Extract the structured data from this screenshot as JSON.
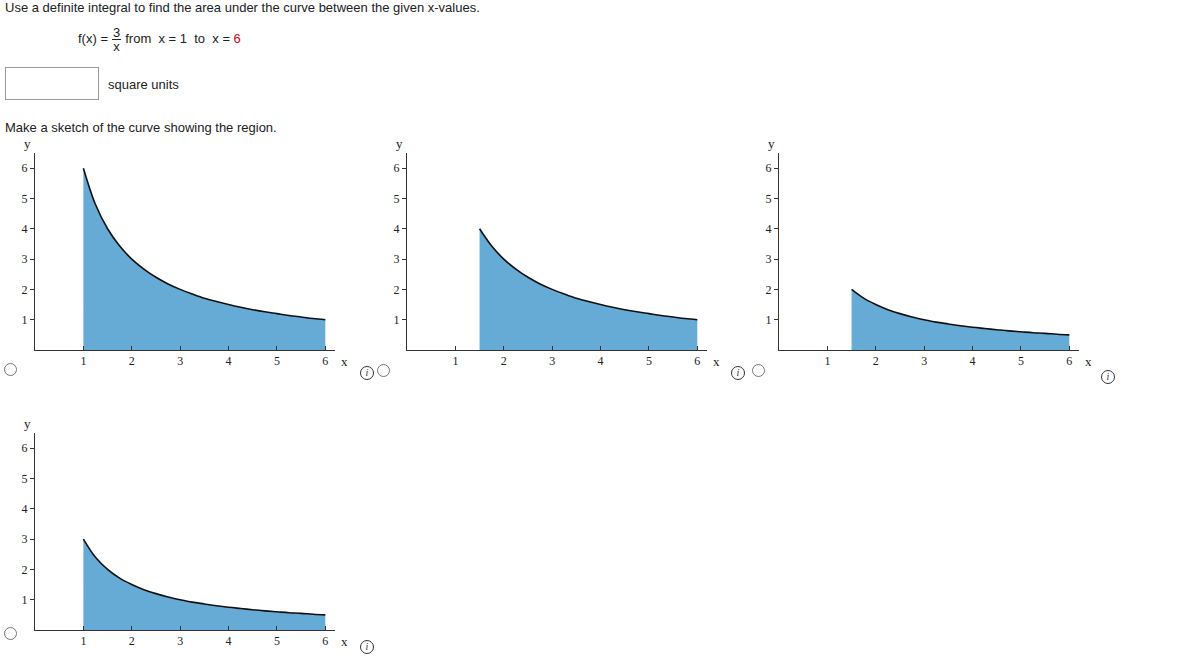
{
  "instruction": "Use a definite integral to find the area under the curve between the given x-values.",
  "problem": {
    "lhs": "f(x) =",
    "numerator": "3",
    "denominator": "x",
    "range_text": "from  x = 1  to  x =",
    "range_end": "6"
  },
  "answer_unit": "square units",
  "sketch_prompt": "Make a sketch of the curve showing the region.",
  "chart_data": [
    {
      "type": "area",
      "x_label": "x",
      "y_label": "y",
      "color": "#66aad6",
      "x": [
        1,
        1.25,
        1.5,
        1.75,
        2,
        2.25,
        2.5,
        2.75,
        3,
        3.25,
        3.5,
        3.75,
        4,
        4.25,
        4.5,
        4.75,
        5,
        5.25,
        5.5,
        5.75,
        6
      ],
      "values": [
        6,
        4.8,
        4,
        3.43,
        3,
        2.67,
        2.4,
        2.18,
        2,
        1.85,
        1.71,
        1.6,
        1.5,
        1.41,
        1.33,
        1.26,
        1.2,
        1.14,
        1.09,
        1.04,
        1
      ],
      "xlim": [
        0,
        6.2
      ],
      "ylim": [
        0,
        6.5
      ],
      "xticks": [
        1,
        2,
        3,
        4,
        5,
        6
      ],
      "yticks": [
        1,
        2,
        3,
        4,
        5,
        6
      ]
    },
    {
      "type": "area",
      "x_label": "x",
      "y_label": "y",
      "color": "#66aad6",
      "x": [
        1.5,
        1.75,
        2,
        2.25,
        2.5,
        2.75,
        3,
        3.25,
        3.5,
        3.75,
        4,
        4.25,
        4.5,
        4.75,
        5,
        5.25,
        5.5,
        5.75,
        6
      ],
      "values": [
        4,
        3.43,
        3,
        2.67,
        2.4,
        2.18,
        2,
        1.85,
        1.71,
        1.6,
        1.5,
        1.41,
        1.33,
        1.26,
        1.2,
        1.14,
        1.09,
        1.04,
        1
      ],
      "xlim": [
        0,
        6.2
      ],
      "ylim": [
        0,
        6.5
      ],
      "xticks": [
        1,
        2,
        3,
        4,
        5,
        6
      ],
      "yticks": [
        1,
        2,
        3,
        4,
        5,
        6
      ]
    },
    {
      "type": "area",
      "x_label": "x",
      "y_label": "y",
      "color": "#66aad6",
      "x": [
        1.5,
        1.75,
        2,
        2.25,
        2.5,
        2.75,
        3,
        3.25,
        3.5,
        3.75,
        4,
        4.25,
        4.5,
        4.75,
        5,
        5.25,
        5.5,
        5.75,
        6
      ],
      "values": [
        2,
        1.71,
        1.5,
        1.33,
        1.2,
        1.09,
        1,
        0.92,
        0.86,
        0.8,
        0.75,
        0.71,
        0.67,
        0.63,
        0.6,
        0.57,
        0.55,
        0.52,
        0.5
      ],
      "xlim": [
        0,
        6.2
      ],
      "ylim": [
        0,
        6.5
      ],
      "xticks": [
        1,
        2,
        3,
        4,
        5,
        6
      ],
      "yticks": [
        1,
        2,
        3,
        4,
        5,
        6
      ]
    },
    {
      "type": "area",
      "x_label": "x",
      "y_label": "y",
      "color": "#66aad6",
      "x": [
        1,
        1.25,
        1.5,
        1.75,
        2,
        2.25,
        2.5,
        2.75,
        3,
        3.25,
        3.5,
        3.75,
        4,
        4.25,
        4.5,
        4.75,
        5,
        5.25,
        5.5,
        5.75,
        6
      ],
      "values": [
        3,
        2.4,
        2,
        1.71,
        1.5,
        1.33,
        1.2,
        1.09,
        1,
        0.92,
        0.86,
        0.8,
        0.75,
        0.71,
        0.67,
        0.63,
        0.6,
        0.57,
        0.55,
        0.52,
        0.5
      ],
      "xlim": [
        0,
        6.2
      ],
      "ylim": [
        0,
        6.5
      ],
      "xticks": [
        1,
        2,
        3,
        4,
        5,
        6
      ],
      "yticks": [
        1,
        2,
        3,
        4,
        5,
        6
      ]
    }
  ]
}
